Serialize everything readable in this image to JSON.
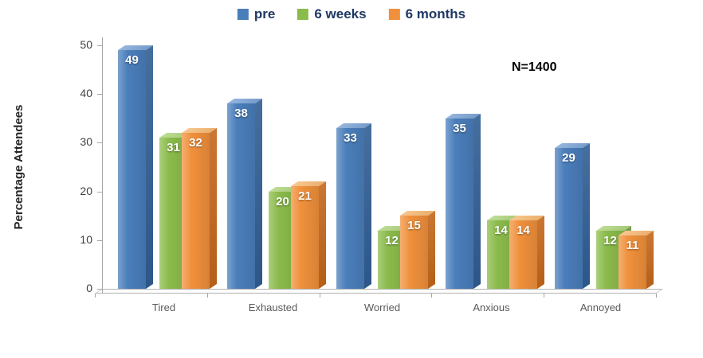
{
  "chart_data": {
    "type": "bar",
    "title": "",
    "ylabel": "Percentage Attendees",
    "xlabel": "",
    "annotation": "N=1400",
    "categories": [
      "Tired",
      "Exhausted",
      "Worried",
      "Anxious",
      "Annoyed"
    ],
    "series": [
      {
        "name": "pre",
        "values": [
          49,
          38,
          33,
          35,
          29
        ],
        "colors": {
          "face": "#4a7ebb",
          "top": "#7da4d6",
          "side": "#305e94"
        }
      },
      {
        "name": "6 weeks",
        "values": [
          31,
          20,
          12,
          14,
          12
        ],
        "colors": {
          "face": "#8bbb4b",
          "top": "#aed47e",
          "side": "#699335"
        }
      },
      {
        "name": "6 months",
        "values": [
          32,
          21,
          15,
          14,
          11
        ],
        "colors": {
          "face": "#f0903c",
          "top": "#f7b975",
          "side": "#c4671b"
        }
      }
    ],
    "ylim": [
      0,
      50
    ],
    "yticks": [
      0,
      10,
      20,
      30,
      40,
      50
    ],
    "legend_position": "top",
    "legend_text_color": "#1f3864",
    "axis_color": "#a6a6a6",
    "grid": false
  }
}
